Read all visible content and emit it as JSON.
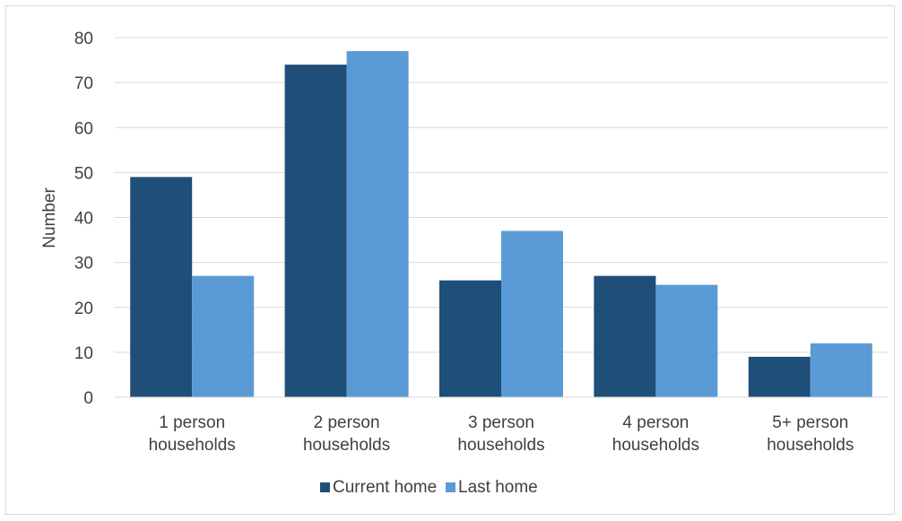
{
  "chart_data": {
    "type": "bar",
    "categories": [
      [
        "1 person",
        "households"
      ],
      [
        "2 person",
        "households"
      ],
      [
        "3 person",
        "households"
      ],
      [
        "4 person",
        "households"
      ],
      [
        "5+ person",
        "households"
      ]
    ],
    "series": [
      {
        "name": "Current home",
        "color": "#1f4e79",
        "values": [
          49,
          74,
          26,
          27,
          9
        ]
      },
      {
        "name": "Last home",
        "color": "#5b9bd5",
        "values": [
          27,
          77,
          37,
          25,
          12
        ]
      }
    ],
    "ylabel": "Number",
    "ylim": [
      0,
      80
    ],
    "yticks": [
      0,
      10,
      20,
      30,
      40,
      50,
      60,
      70,
      80
    ],
    "grid": true,
    "legend_position": "bottom"
  }
}
